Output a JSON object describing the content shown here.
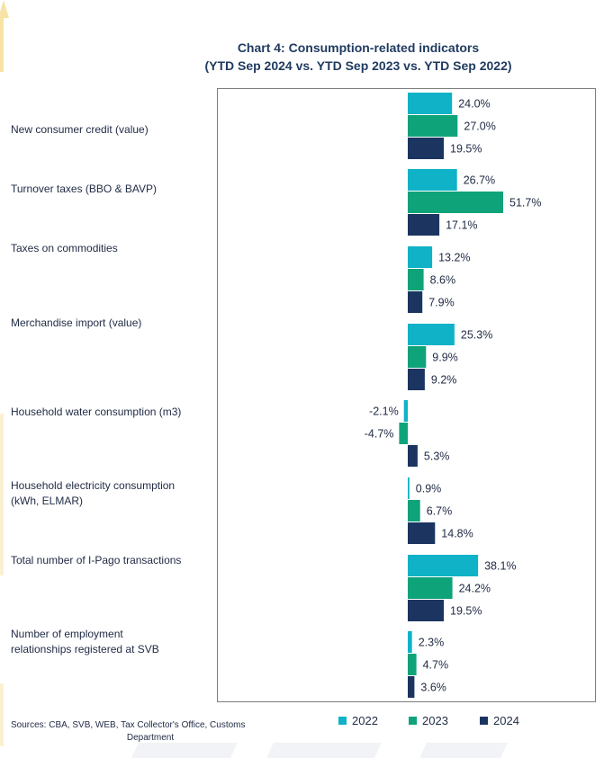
{
  "chart_data": {
    "type": "bar",
    "orientation": "horizontal",
    "title": "Chart 4: Consumption-related indicators",
    "subtitle": "(YTD Sep 2024 vs. YTD Sep 2023 vs. YTD Sep 2022)",
    "categories": [
      "New consumer credit (value)",
      "Turnover taxes (BBO & BAVP)",
      "Taxes on commodities",
      "Merchandise import (value)",
      "Household water consumption (m3)",
      "Household electricity consumption (kWh, ELMAR)",
      "Total number of I-Pago transactions",
      "Number of employment relationships registered at SVB"
    ],
    "series": [
      {
        "name": "2022",
        "color": "#10b2c7",
        "values": [
          24.0,
          26.7,
          13.2,
          25.3,
          -2.1,
          0.9,
          38.1,
          2.3
        ],
        "labels": [
          "24.0%",
          "26.7%",
          "13.2%",
          "25.3%",
          "-2.1%",
          "0.9%",
          "38.1%",
          "2.3%"
        ]
      },
      {
        "name": "2023",
        "color": "#0fa37a",
        "values": [
          27.0,
          51.7,
          8.6,
          9.9,
          -4.7,
          6.7,
          24.2,
          4.7
        ],
        "labels": [
          "27.0%",
          "51.7%",
          "8.6%",
          "9.9%",
          "-4.7%",
          "6.7%",
          "24.2%",
          "4.7%"
        ]
      },
      {
        "name": "2024",
        "color": "#1b3560",
        "values": [
          19.5,
          17.1,
          7.9,
          9.2,
          5.3,
          14.8,
          19.5,
          3.6
        ],
        "labels": [
          "19.5%",
          "17.1%",
          "7.9%",
          "9.2%",
          "5.3%",
          "14.8%",
          "19.5%",
          "3.6%"
        ]
      }
    ],
    "legend_position": "bottom",
    "grid": false
  },
  "labels": {
    "c0": "New consumer credit (value)",
    "c1": "Turnover taxes (BBO & BAVP)",
    "c2": "Taxes on commodities",
    "c3": "Merchandise import (value)",
    "c4": "Household water consumption (m3)",
    "c5a": "Household electricity consumption",
    "c5b": "(kWh, ELMAR)",
    "c6": "Total number of I-Pago transactions",
    "c7a": "Number of employment",
    "c7b": "relationships registered at SVB"
  },
  "sources_line1": "Sources: CBA, SVB, WEB, Tax Collector's Office, Customs",
  "sources_line2": "Department"
}
